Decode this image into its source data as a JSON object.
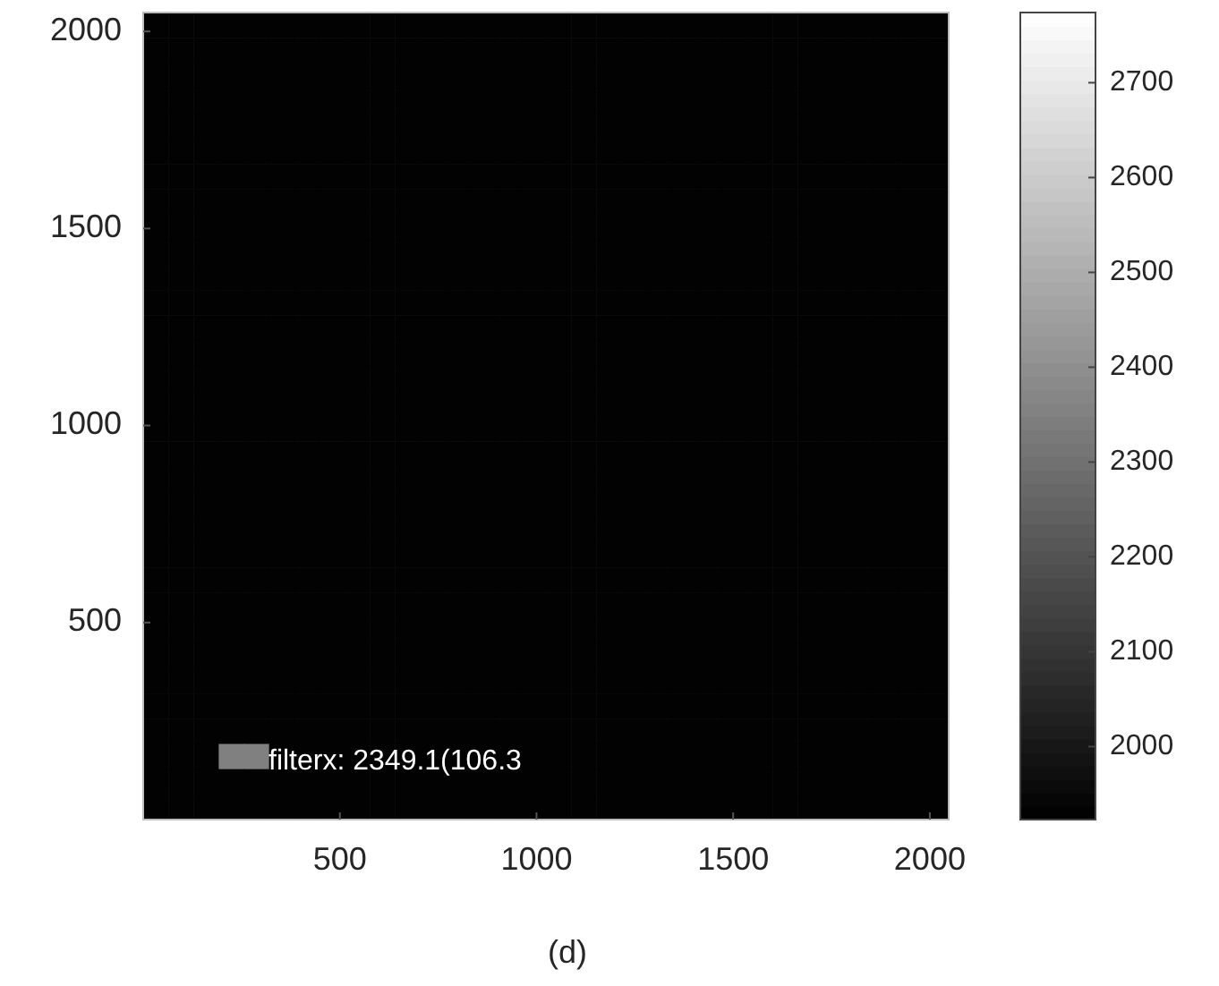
{
  "chart_data": {
    "type": "heatmap",
    "title": "(d)",
    "xlim": [
      0,
      2048
    ],
    "ylim": [
      0,
      2048
    ],
    "xticks": [
      500,
      1000,
      1500,
      2000
    ],
    "yticks": [
      500,
      1000,
      1500,
      2000
    ],
    "clim": [
      1923,
      2774
    ],
    "cticks": [
      2000,
      2100,
      2200,
      2300,
      2400,
      2500,
      2600,
      2700
    ],
    "annotations": [
      "filterx: 2349.1(106.3"
    ],
    "cells": [
      [
        1930,
        1930,
        1930,
        1930,
        1930,
        1930,
        1930,
        1930,
        1930,
        1930,
        1930,
        1930,
        1930,
        1930,
        1930,
        1930,
        1930,
        1930,
        1930,
        1930,
        1930,
        1930,
        1930,
        1930,
        1930,
        1930,
        1930,
        1930,
        1930,
        1930,
        1930,
        1930
      ],
      [
        1930,
        1930,
        1930,
        1930,
        1930,
        1930,
        1930,
        1930,
        1930,
        1930,
        1930,
        1930,
        1930,
        1930,
        1930,
        1930,
        1930,
        1930,
        1930,
        1930,
        1930,
        1930,
        1930,
        1930,
        1930,
        1930,
        1930,
        1930,
        1930,
        1930,
        1930,
        1930
      ],
      [
        1930,
        1930,
        1930,
        1930,
        1930,
        1930,
        1930,
        1930,
        1930,
        1930,
        1930,
        1930,
        1930,
        1930,
        1930,
        1930,
        1930,
        1930,
        1930,
        1930,
        1930,
        1930,
        1930,
        1930,
        1930,
        1930,
        1930,
        1930,
        1930,
        1930,
        1930,
        1930
      ],
      [
        1930,
        1930,
        1930,
        1930,
        1930,
        1930,
        1930,
        1930,
        1930,
        1930,
        1930,
        1930,
        1930,
        1930,
        1930,
        1930,
        1930,
        1930,
        1930,
        1930,
        1930,
        1930,
        1930,
        1930,
        1930,
        1930,
        1930,
        1930,
        1930,
        1930,
        1930,
        1930
      ],
      [
        1930,
        1930,
        1930,
        1930,
        1930,
        1930,
        1930,
        1930,
        1930,
        1930,
        1930,
        1930,
        1930,
        1930,
        1930,
        1930,
        1930,
        1930,
        1930,
        1930,
        1930,
        1930,
        1930,
        1930,
        1930,
        1930,
        1930,
        1930,
        1930,
        1930,
        1930,
        1930
      ],
      [
        1930,
        1930,
        1930,
        1930,
        1930,
        1930,
        1930,
        1930,
        1930,
        1930,
        1930,
        1930,
        1930,
        1930,
        1930,
        1930,
        1930,
        1930,
        1930,
        1930,
        1930,
        1930,
        1930,
        1930,
        1930,
        1930,
        1930,
        1930,
        1930,
        1930,
        1930,
        1930
      ],
      [
        1930,
        1930,
        1930,
        1930,
        1930,
        1930,
        1930,
        1930,
        1930,
        1930,
        1930,
        1930,
        1930,
        1930,
        1930,
        1930,
        1930,
        1930,
        1930,
        1930,
        1930,
        1930,
        1930,
        1930,
        1930,
        1930,
        1930,
        1930,
        1930,
        1930,
        1930,
        1930
      ],
      [
        1930,
        1930,
        1930,
        1930,
        1930,
        1930,
        1930,
        1930,
        1930,
        1930,
        1930,
        1930,
        1930,
        1930,
        1930,
        1930,
        1930,
        1930,
        1930,
        1930,
        1930,
        1930,
        1930,
        1930,
        1930,
        1930,
        1930,
        1930,
        1930,
        1930,
        1930,
        1930
      ],
      [
        1930,
        1930,
        1930,
        1930,
        1930,
        1930,
        1930,
        1930,
        1930,
        1930,
        1930,
        1930,
        1930,
        1930,
        1930,
        1930,
        1930,
        1930,
        1930,
        1930,
        1930,
        1930,
        1930,
        1930,
        1930,
        1930,
        1930,
        1930,
        1930,
        1930,
        1930,
        1930
      ],
      [
        1930,
        1930,
        1930,
        1930,
        1930,
        1930,
        1930,
        1930,
        1930,
        1930,
        1930,
        1930,
        1930,
        1930,
        1930,
        1930,
        1930,
        1930,
        1930,
        1930,
        1930,
        1930,
        1930,
        1930,
        1930,
        1930,
        1930,
        1930,
        1930,
        1930,
        1930,
        1930
      ],
      [
        1930,
        1930,
        1930,
        1930,
        1930,
        1930,
        1930,
        1930,
        1930,
        1930,
        1930,
        1930,
        1930,
        1930,
        1930,
        1930,
        1930,
        1930,
        1930,
        1930,
        1930,
        1930,
        1930,
        1930,
        1930,
        1930,
        1930,
        1930,
        1930,
        1930,
        1930,
        1930
      ],
      [
        1930,
        1930,
        1930,
        1930,
        1930,
        1930,
        1930,
        1930,
        1930,
        1930,
        1930,
        1930,
        1930,
        1930,
        1930,
        1930,
        1930,
        1930,
        1930,
        1930,
        1930,
        1930,
        1930,
        1930,
        1930,
        1930,
        1930,
        1930,
        1930,
        1930,
        1930,
        1930
      ],
      [
        1930,
        1930,
        1930,
        1930,
        1930,
        1930,
        1930,
        1930,
        1930,
        1930,
        1930,
        1930,
        1930,
        1930,
        1930,
        1930,
        1930,
        1930,
        1930,
        1930,
        1930,
        1930,
        1930,
        1930,
        1930,
        1930,
        1930,
        1930,
        1930,
        1930,
        1930,
        1930
      ],
      [
        1930,
        1930,
        1930,
        1930,
        1930,
        1930,
        1930,
        1930,
        1930,
        1930,
        1930,
        1930,
        1930,
        1930,
        1930,
        1930,
        1930,
        1930,
        1930,
        1930,
        1930,
        1930,
        1930,
        1930,
        1930,
        1930,
        1930,
        1930,
        1930,
        1930,
        1930,
        1930
      ],
      [
        1930,
        1930,
        1930,
        1930,
        1930,
        1930,
        1930,
        1930,
        1930,
        1930,
        1930,
        1930,
        1930,
        1930,
        1930,
        1930,
        1930,
        1930,
        1930,
        1930,
        1930,
        1930,
        1930,
        1930,
        1930,
        1930,
        1930,
        1930,
        1930,
        1930,
        1930,
        1930
      ],
      [
        1930,
        1930,
        1930,
        1930,
        1930,
        1930,
        1930,
        1930,
        1930,
        1930,
        1930,
        1930,
        1930,
        1930,
        1930,
        1930,
        1930,
        1930,
        1930,
        1930,
        1930,
        1930,
        1930,
        1930,
        1930,
        1930,
        1930,
        1930,
        1930,
        1930,
        1930,
        1930
      ],
      [
        1930,
        1930,
        1930,
        1930,
        1930,
        1930,
        1930,
        1930,
        1930,
        1930,
        1930,
        1930,
        1930,
        1930,
        1930,
        1930,
        1930,
        1930,
        1930,
        1930,
        1930,
        1930,
        1930,
        1930,
        1930,
        1930,
        1930,
        1930,
        1930,
        1930,
        1930,
        1930
      ],
      [
        1930,
        1930,
        1930,
        1930,
        1930,
        1930,
        1930,
        1930,
        1930,
        1930,
        1930,
        1930,
        1930,
        1930,
        1930,
        1930,
        1930,
        1930,
        1930,
        1930,
        1930,
        1930,
        1930,
        1930,
        1930,
        1930,
        1930,
        1930,
        1930,
        1930,
        1930,
        1930
      ],
      [
        1930,
        1930,
        1930,
        1930,
        1930,
        1930,
        1930,
        1930,
        1930,
        1930,
        1930,
        1930,
        1930,
        1930,
        1930,
        1930,
        1930,
        1930,
        1930,
        1930,
        1930,
        1930,
        1930,
        1930,
        1930,
        1930,
        1930,
        1930,
        1930,
        1930,
        1930,
        1930
      ],
      [
        1930,
        1930,
        1930,
        1930,
        1930,
        1930,
        1930,
        1930,
        1930,
        1930,
        1930,
        1930,
        1930,
        1930,
        1930,
        1930,
        1930,
        1930,
        1930,
        1930,
        1930,
        1930,
        1930,
        1930,
        1930,
        1930,
        1930,
        1930,
        1930,
        1930,
        1930,
        1930
      ],
      [
        1930,
        1930,
        1930,
        1930,
        1930,
        1930,
        1930,
        1930,
        1930,
        1930,
        1930,
        1930,
        1930,
        1930,
        1930,
        1930,
        1930,
        1930,
        1930,
        1930,
        1930,
        1930,
        1930,
        1930,
        1930,
        1930,
        1930,
        1930,
        1930,
        1930,
        1930,
        1930
      ],
      [
        1930,
        1930,
        1930,
        1930,
        1930,
        1930,
        1930,
        1930,
        1930,
        1930,
        1930,
        1930,
        1930,
        1930,
        1930,
        1930,
        1930,
        1930,
        1930,
        1930,
        1930,
        1930,
        1930,
        1930,
        1930,
        1930,
        1930,
        1930,
        1930,
        1930,
        1930,
        1930
      ],
      [
        1930,
        1930,
        1930,
        1930,
        1930,
        1930,
        1930,
        1930,
        1930,
        1930,
        1930,
        1930,
        1930,
        1930,
        1930,
        1930,
        1930,
        1930,
        1930,
        1930,
        1930,
        1930,
        1930,
        1930,
        1930,
        1930,
        1930,
        1930,
        1930,
        1930,
        1930,
        1930
      ],
      [
        1930,
        1930,
        1930,
        1930,
        1930,
        1930,
        1930,
        1930,
        1930,
        1930,
        1930,
        1930,
        1930,
        1930,
        1930,
        1930,
        1930,
        1930,
        1930,
        1930,
        1930,
        1930,
        1930,
        1930,
        1930,
        1930,
        1930,
        1930,
        1930,
        1930,
        1930,
        1930
      ],
      [
        1930,
        1930,
        1930,
        1930,
        1930,
        1930,
        1930,
        1930,
        1930,
        1930,
        1930,
        1930,
        1930,
        1930,
        1930,
        1930,
        1930,
        1930,
        1930,
        1930,
        1930,
        1930,
        1930,
        1930,
        1930,
        1930,
        1930,
        1930,
        1930,
        1930,
        1930,
        1930
      ],
      [
        1930,
        1930,
        1930,
        1930,
        1930,
        1930,
        1930,
        1930,
        1930,
        1930,
        1930,
        1930,
        1930,
        1930,
        1930,
        1930,
        1930,
        1930,
        1930,
        1930,
        1930,
        1930,
        1930,
        1930,
        1930,
        1930,
        1930,
        1930,
        1930,
        1930,
        1930,
        1930
      ],
      [
        1930,
        1930,
        1930,
        1930,
        1930,
        1930,
        1930,
        1930,
        1930,
        1930,
        1930,
        1930,
        1930,
        1930,
        1930,
        1930,
        1930,
        1930,
        1930,
        1930,
        1930,
        1930,
        1930,
        1930,
        1930,
        1930,
        1930,
        1930,
        1930,
        1930,
        1930,
        1930
      ],
      [
        1930,
        1930,
        1930,
        1930,
        1930,
        1930,
        1930,
        1930,
        1930,
        1930,
        1930,
        1930,
        1930,
        1930,
        1930,
        1930,
        1930,
        1930,
        1930,
        1930,
        1930,
        1930,
        1930,
        1930,
        1930,
        1930,
        1930,
        1930,
        1930,
        1930,
        1930,
        1930
      ],
      [
        1930,
        1930,
        1930,
        1930,
        1930,
        1930,
        1930,
        1930,
        1930,
        1930,
        1930,
        1930,
        1930,
        1930,
        1930,
        1930,
        1930,
        1930,
        1930,
        1930,
        1930,
        1930,
        1930,
        1930,
        1930,
        1930,
        1930,
        1930,
        1930,
        1930,
        1930,
        1930
      ],
      [
        1930,
        1930,
        1930,
        2349,
        2349,
        1930,
        1930,
        1930,
        1930,
        1930,
        1930,
        1930,
        1930,
        1930,
        1930,
        1930,
        1930,
        1930,
        1930,
        1930,
        1930,
        1930,
        1930,
        1930,
        1930,
        1930,
        1930,
        1930,
        1930,
        1930,
        1930,
        1930
      ],
      [
        1930,
        1930,
        1930,
        1930,
        1930,
        1930,
        1930,
        1930,
        1930,
        1930,
        1930,
        1930,
        1930,
        1930,
        1930,
        1930,
        1930,
        1930,
        1930,
        1930,
        1930,
        1930,
        1930,
        1930,
        1930,
        1930,
        1930,
        1930,
        1930,
        1930,
        1930,
        1930
      ],
      [
        1930,
        1930,
        1930,
        1930,
        1930,
        1930,
        1930,
        1930,
        1930,
        1930,
        1930,
        1930,
        1930,
        1930,
        1930,
        1930,
        1930,
        1930,
        1930,
        1930,
        1930,
        1930,
        1930,
        1930,
        1930,
        1930,
        1930,
        1930,
        1930,
        1930,
        1930,
        1930
      ]
    ]
  }
}
